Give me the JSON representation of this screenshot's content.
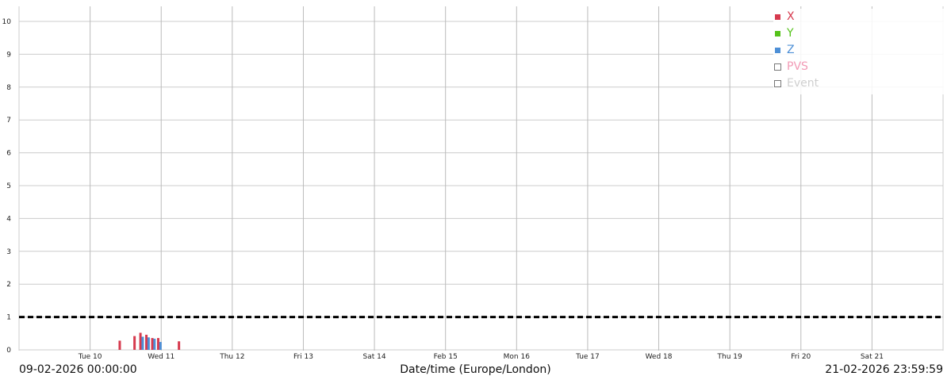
{
  "chart_data": {
    "type": "bar",
    "x_axis": {
      "start": "2026-02-09 00:00:00",
      "end": "2026-02-21 23:59:59",
      "tick_labels": [
        "Tue 10",
        "Wed 11",
        "Thu 12",
        "Fri 13",
        "Sat 14",
        "Feb 15",
        "Mon 16",
        "Tue 17",
        "Wed 18",
        "Thu 19",
        "Fri 20",
        "Sat 21"
      ],
      "tick_dates": [
        "2026-02-10",
        "2026-02-11",
        "2026-02-12",
        "2026-02-13",
        "2026-02-14",
        "2026-02-15",
        "2026-02-16",
        "2026-02-17",
        "2026-02-18",
        "2026-02-19",
        "2026-02-20",
        "2026-02-21"
      ],
      "start_label": "09-02-2026 00:00:00",
      "end_label": "21-02-2026 23:59:59",
      "xlabel": "Date/time (Europe/London)"
    },
    "ylim": [
      0,
      10
    ],
    "y_ticks": [
      0,
      1,
      2,
      3,
      4,
      5,
      6,
      7,
      8,
      9,
      10
    ],
    "grid": true,
    "legend_position": "top-right",
    "threshold": {
      "value": 1.0,
      "style": "dashed",
      "color": "#000000"
    },
    "series": [
      {
        "name": "X",
        "color": "#d63a4e",
        "visible": true,
        "values": [
          {
            "x": "2026-02-10 10:00",
            "y": 0.28
          },
          {
            "x": "2026-02-10 15:00",
            "y": 0.42
          },
          {
            "x": "2026-02-10 17:00",
            "y": 0.52
          },
          {
            "x": "2026-02-10 19:00",
            "y": 0.46
          },
          {
            "x": "2026-02-10 21:00",
            "y": 0.36
          },
          {
            "x": "2026-02-10 23:00",
            "y": 0.36
          },
          {
            "x": "2026-02-11 06:00",
            "y": 0.26
          }
        ]
      },
      {
        "name": "Y",
        "color": "#55c21a",
        "visible": true,
        "values": []
      },
      {
        "name": "Z",
        "color": "#4d8fd6",
        "visible": true,
        "values": [
          {
            "x": "2026-02-10 17:45",
            "y": 0.4
          },
          {
            "x": "2026-02-10 19:45",
            "y": 0.38
          },
          {
            "x": "2026-02-10 21:45",
            "y": 0.34
          },
          {
            "x": "2026-02-10 23:45",
            "y": 0.24
          }
        ]
      },
      {
        "name": "PVS",
        "color": "#f29ab5",
        "visible": false,
        "values": []
      },
      {
        "name": "Event",
        "color": "#cfcfcf",
        "visible": false,
        "values": []
      }
    ]
  }
}
